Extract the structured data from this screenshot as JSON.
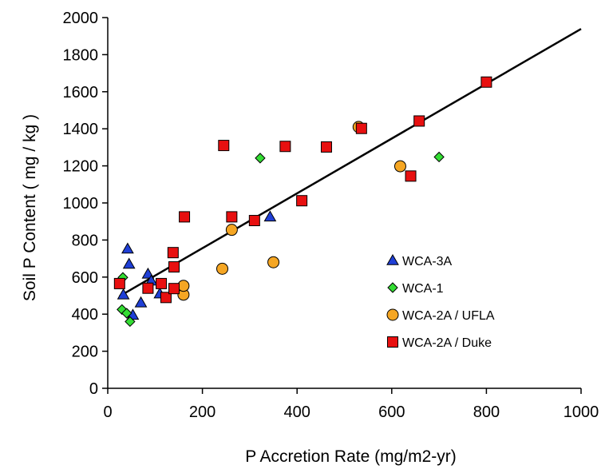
{
  "chart_data": {
    "type": "scatter",
    "xlabel": "P Accretion Rate  (mg/m2-yr)",
    "ylabel": "Soil P Content ( mg / kg )",
    "xlim": [
      0,
      1000
    ],
    "ylim": [
      0,
      2000
    ],
    "x_ticks": [
      "0",
      "200",
      "400",
      "600",
      "800",
      "1000"
    ],
    "y_ticks": [
      "0",
      "200",
      "400",
      "600",
      "800",
      "1000",
      "1200",
      "1400",
      "1600",
      "1800",
      "2000"
    ],
    "grid": false,
    "legend_position": "right-center",
    "trendline": {
      "type": "linear",
      "x": [
        25,
        1000
      ],
      "y": [
        497,
        1939
      ]
    },
    "series": [
      {
        "name": "WCA-3A",
        "marker": "triangle",
        "color": "#1f3fd6",
        "points": [
          [
            33,
            505
          ],
          [
            42,
            752
          ],
          [
            45,
            670
          ],
          [
            53,
            395
          ],
          [
            70,
            462
          ],
          [
            85,
            617
          ],
          [
            92,
            580
          ],
          [
            110,
            510
          ],
          [
            343,
            925
          ]
        ]
      },
      {
        "name": "WCA-1",
        "marker": "diamond",
        "color": "#33dd33",
        "points": [
          [
            32,
            598
          ],
          [
            30,
            425
          ],
          [
            40,
            405
          ],
          [
            47,
            360
          ],
          [
            322,
            1242
          ],
          [
            700,
            1248
          ]
        ]
      },
      {
        "name": "WCA-2A / UFLA",
        "marker": "circle",
        "color": "#f5a623",
        "points": [
          [
            160,
            505
          ],
          [
            160,
            553
          ],
          [
            242,
            645
          ],
          [
            262,
            855
          ],
          [
            350,
            680
          ],
          [
            530,
            1410
          ],
          [
            618,
            1198
          ]
        ]
      },
      {
        "name": "WCA-2A / Duke",
        "marker": "square",
        "color": "#e81010",
        "points": [
          [
            25,
            565
          ],
          [
            85,
            540
          ],
          [
            113,
            565
          ],
          [
            123,
            490
          ],
          [
            138,
            732
          ],
          [
            140,
            655
          ],
          [
            140,
            538
          ],
          [
            162,
            925
          ],
          [
            245,
            1310
          ],
          [
            262,
            925
          ],
          [
            310,
            905
          ],
          [
            375,
            1305
          ],
          [
            410,
            1012
          ],
          [
            462,
            1302
          ],
          [
            536,
            1402
          ],
          [
            640,
            1145
          ],
          [
            658,
            1442
          ],
          [
            800,
            1652
          ]
        ]
      }
    ]
  }
}
